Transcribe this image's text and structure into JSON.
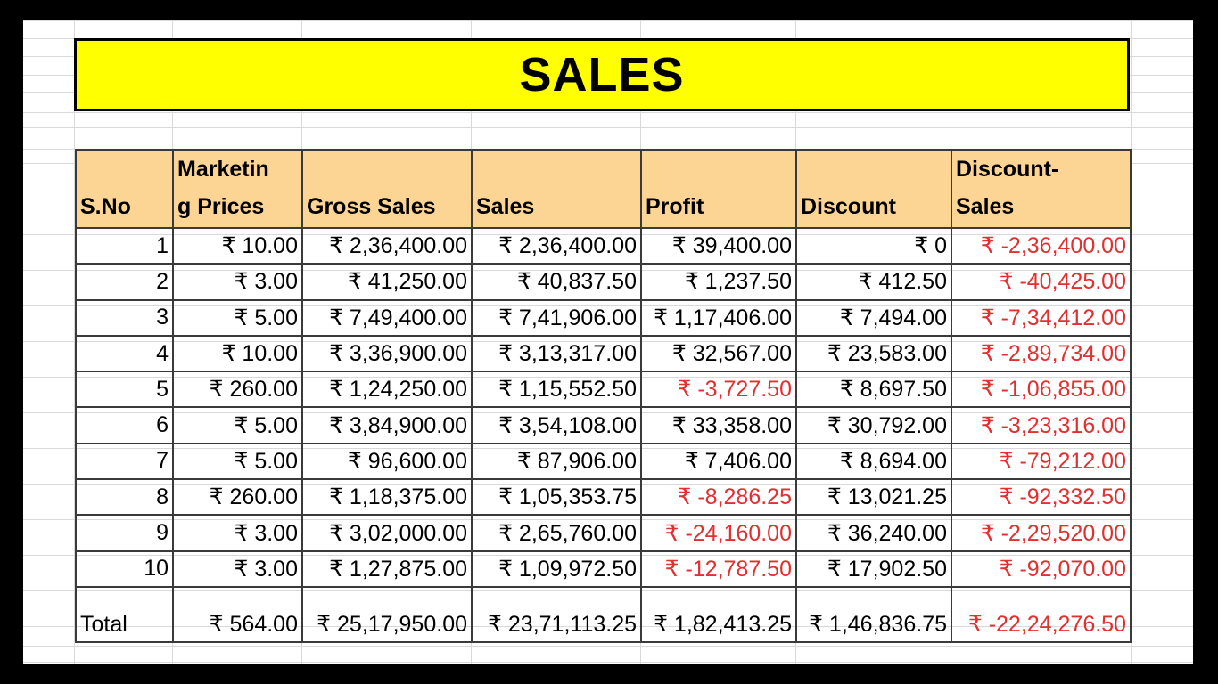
{
  "sheet": {
    "title": "SALES",
    "headers": {
      "sno": "S.No",
      "marketing_line1": "Marketin",
      "marketing_line2": "g Prices",
      "gross_sales": "Gross Sales",
      "sales": "Sales",
      "profit": "Profit",
      "discount": "Discount",
      "discount_sales_line1": "Discount-",
      "discount_sales_line2": "Sales"
    },
    "rows": [
      {
        "sno": "1",
        "marketing": "₹ 10.00",
        "gross": "₹ 2,36,400.00",
        "sales": "₹ 2,36,400.00",
        "profit": "₹ 39,400.00",
        "discount": "₹ 0",
        "disc_sales": "₹ -2,36,400.00"
      },
      {
        "sno": "2",
        "marketing": "₹ 3.00",
        "gross": "₹ 41,250.00",
        "sales": "₹ 40,837.50",
        "profit": "₹ 1,237.50",
        "discount": "₹ 412.50",
        "disc_sales": "₹ -40,425.00"
      },
      {
        "sno": "3",
        "marketing": "₹ 5.00",
        "gross": "₹ 7,49,400.00",
        "sales": "₹ 7,41,906.00",
        "profit": "₹ 1,17,406.00",
        "discount": "₹ 7,494.00",
        "disc_sales": "₹ -7,34,412.00"
      },
      {
        "sno": "4",
        "marketing": "₹ 10.00",
        "gross": "₹ 3,36,900.00",
        "sales": "₹ 3,13,317.00",
        "profit": "₹ 32,567.00",
        "discount": "₹ 23,583.00",
        "disc_sales": "₹ -2,89,734.00"
      },
      {
        "sno": "5",
        "marketing": "₹ 260.00",
        "gross": "₹ 1,24,250.00",
        "sales": "₹ 1,15,552.50",
        "profit": "₹ -3,727.50",
        "discount": "₹ 8,697.50",
        "disc_sales": "₹ -1,06,855.00"
      },
      {
        "sno": "6",
        "marketing": "₹ 5.00",
        "gross": "₹ 3,84,900.00",
        "sales": "₹ 3,54,108.00",
        "profit": "₹ 33,358.00",
        "discount": "₹ 30,792.00",
        "disc_sales": "₹ -3,23,316.00"
      },
      {
        "sno": "7",
        "marketing": "₹ 5.00",
        "gross": "₹ 96,600.00",
        "sales": "₹ 87,906.00",
        "profit": "₹ 7,406.00",
        "discount": "₹ 8,694.00",
        "disc_sales": "₹ -79,212.00"
      },
      {
        "sno": "8",
        "marketing": "₹ 260.00",
        "gross": "₹ 1,18,375.00",
        "sales": "₹ 1,05,353.75",
        "profit": "₹ -8,286.25",
        "discount": "₹ 13,021.25",
        "disc_sales": "₹ -92,332.50"
      },
      {
        "sno": "9",
        "marketing": "₹ 3.00",
        "gross": "₹ 3,02,000.00",
        "sales": "₹ 2,65,760.00",
        "profit": "₹ -24,160.00",
        "discount": "₹ 36,240.00",
        "disc_sales": "₹ -2,29,520.00"
      },
      {
        "sno": "10",
        "marketing": "₹ 3.00",
        "gross": "₹ 1,27,875.00",
        "sales": "₹ 1,09,972.50",
        "profit": "₹ -12,787.50",
        "discount": "₹ 17,902.50",
        "disc_sales": "₹ -92,070.00"
      }
    ],
    "total": {
      "label": "Total",
      "marketing": "₹ 564.00",
      "gross": "₹ 25,17,950.00",
      "sales": "₹ 23,71,113.25",
      "profit": "₹ 1,82,413.25",
      "discount": "₹ 1,46,836.75",
      "disc_sales": "₹ -22,24,276.50"
    },
    "colors": {
      "title_bg": "#ffff00",
      "header_bg": "#fcd493",
      "negative": "#e0302f"
    }
  }
}
